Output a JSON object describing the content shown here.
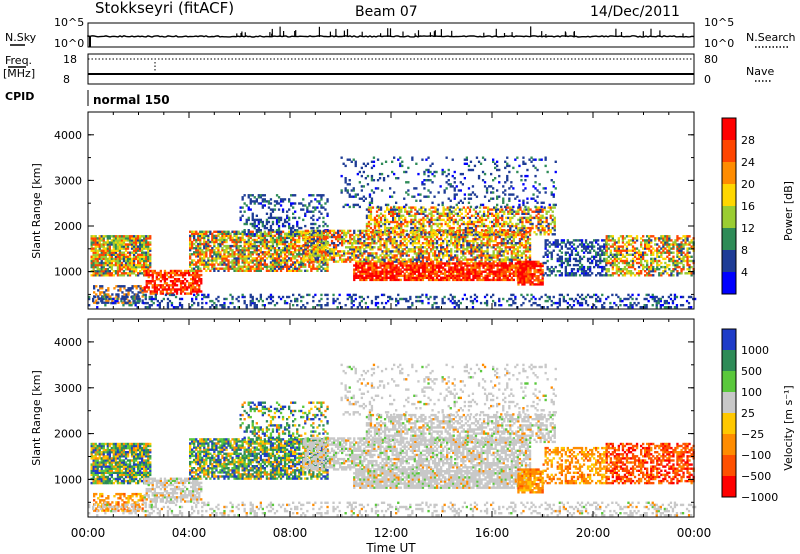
{
  "header": {
    "station": "Stokkseyri (fitACF)",
    "beam": "Beam 07",
    "date": "14/Dec/2011"
  },
  "top_panels": {
    "nsky_label": "N.Sky",
    "nsky_ticks": [
      "10^5",
      "10^0"
    ],
    "nsearch_label": "N.Search",
    "nsearch_ticks": [
      "10^5",
      "10^0"
    ],
    "freq_label_line1": "Freq.",
    "freq_label_line2": "[MHz]",
    "freq_ticks": [
      "18",
      "8"
    ],
    "nave_label": "Nave",
    "nave_ticks": [
      "80",
      "0"
    ],
    "cpid_label": "CPID",
    "mode_text": "normal 150"
  },
  "chart_data": [
    {
      "type": "heatmap",
      "ylabel": "Slant Range [km]",
      "xlabel": "",
      "yticks": [
        "4000",
        "3000",
        "2000",
        "1000"
      ],
      "ylim": [
        180,
        4500
      ],
      "xlim": [
        0,
        24
      ],
      "colorbar_label": "Power [dB]",
      "colorbar_ticks": [
        "28",
        "24",
        "20",
        "16",
        "12",
        "8",
        "4"
      ],
      "colorbar_colors": [
        "#ff0000",
        "#ff4500",
        "#ff8c00",
        "#ffd700",
        "#9acd32",
        "#2e8b57",
        "#1e3c96",
        "#0000ff"
      ]
    },
    {
      "type": "heatmap",
      "ylabel": "Slant Range [km]",
      "xlabel": "Time UT",
      "yticks": [
        "4000",
        "3000",
        "2000",
        "1000"
      ],
      "ylim": [
        180,
        4500
      ],
      "xlim": [
        0,
        24
      ],
      "xticks": [
        "00:00",
        "04:00",
        "08:00",
        "12:00",
        "16:00",
        "20:00",
        "00:00"
      ],
      "colorbar_label": "Velocity [m s⁻¹]",
      "colorbar_ticks": [
        "1000",
        "500",
        "100",
        "25",
        "−25",
        "−100",
        "−500",
        "−1000"
      ],
      "colorbar_colors": [
        "#1e3cc8",
        "#2e8b57",
        "#5ac83c",
        "#c8c8c8",
        "#ffc800",
        "#ff8c00",
        "#ff5000",
        "#ff0000"
      ]
    }
  ]
}
